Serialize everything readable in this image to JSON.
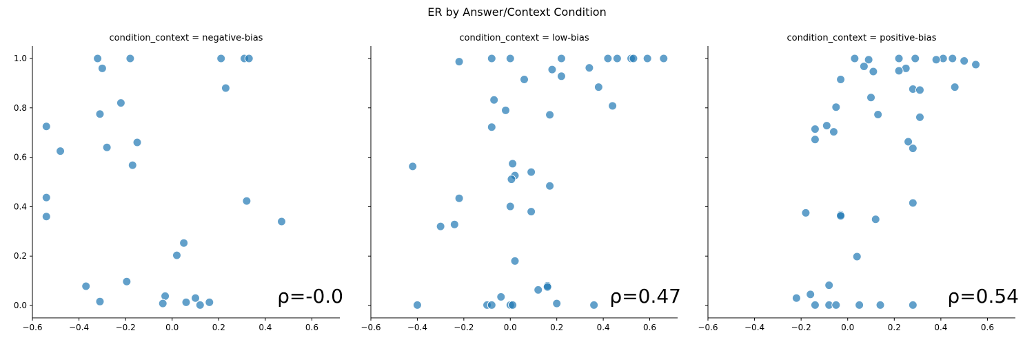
{
  "title": "ER by Answer/Context Condition",
  "chart_data": [
    {
      "type": "scatter",
      "title": "condition_context = negative-bias",
      "xlim": [
        -0.6,
        0.72
      ],
      "ylim": [
        -0.05,
        1.05
      ],
      "xticks": [
        -0.6,
        -0.4,
        -0.2,
        0.0,
        0.2,
        0.4,
        0.6
      ],
      "xtick_labels": [
        "−0.6",
        "−0.4",
        "−0.2",
        "0.0",
        "0.2",
        "0.4",
        "0.6"
      ],
      "yticks": [
        0.0,
        0.2,
        0.4,
        0.6,
        0.8,
        1.0
      ],
      "ytick_labels": [
        "0.0",
        "0.2",
        "0.4",
        "0.6",
        "0.8",
        "1.0"
      ],
      "annotation": "ρ=-0.0",
      "points": [
        [
          -0.32,
          1.0
        ],
        [
          -0.18,
          1.0
        ],
        [
          0.21,
          1.0
        ],
        [
          0.31,
          1.0
        ],
        [
          0.33,
          1.0
        ],
        [
          -0.3,
          0.96
        ],
        [
          0.23,
          0.88
        ],
        [
          -0.22,
          0.82
        ],
        [
          -0.31,
          0.775
        ],
        [
          -0.54,
          0.725
        ],
        [
          -0.15,
          0.66
        ],
        [
          -0.28,
          0.64
        ],
        [
          -0.48,
          0.625
        ],
        [
          -0.17,
          0.568
        ],
        [
          -0.54,
          0.437
        ],
        [
          0.32,
          0.423
        ],
        [
          -0.54,
          0.36
        ],
        [
          0.47,
          0.34
        ],
        [
          0.05,
          0.253
        ],
        [
          0.02,
          0.203
        ],
        [
          -0.195,
          0.097
        ],
        [
          -0.37,
          0.078
        ],
        [
          -0.03,
          0.038
        ],
        [
          0.1,
          0.03
        ],
        [
          -0.31,
          0.016
        ],
        [
          0.06,
          0.013
        ],
        [
          0.16,
          0.013
        ],
        [
          -0.04,
          0.008
        ],
        [
          0.12,
          0.002
        ]
      ]
    },
    {
      "type": "scatter",
      "title": "condition_context = low-bias",
      "xlim": [
        -0.6,
        0.72
      ],
      "ylim": [
        -0.05,
        1.05
      ],
      "xticks": [
        -0.6,
        -0.4,
        -0.2,
        0.0,
        0.2,
        0.4,
        0.6
      ],
      "xtick_labels": [
        "−0.6",
        "−0.4",
        "−0.2",
        "0.0",
        "0.2",
        "0.4",
        "0.6"
      ],
      "yticks": [
        0.0,
        0.2,
        0.4,
        0.6,
        0.8,
        1.0
      ],
      "ytick_labels": [
        "0.0",
        "0.2",
        "0.4",
        "0.6",
        "0.8",
        "1.0"
      ],
      "annotation": "ρ=0.47",
      "points": [
        [
          -0.08,
          1.0
        ],
        [
          0.0,
          1.0
        ],
        [
          0.22,
          1.0
        ],
        [
          0.42,
          1.0
        ],
        [
          0.46,
          1.0
        ],
        [
          0.52,
          1.0
        ],
        [
          0.53,
          1.0
        ],
        [
          0.59,
          1.0
        ],
        [
          0.66,
          1.0
        ],
        [
          -0.22,
          0.987
        ],
        [
          0.34,
          0.962
        ],
        [
          0.18,
          0.955
        ],
        [
          0.22,
          0.928
        ],
        [
          0.06,
          0.915
        ],
        [
          0.38,
          0.884
        ],
        [
          -0.07,
          0.832
        ],
        [
          0.44,
          0.808
        ],
        [
          -0.02,
          0.79
        ],
        [
          0.17,
          0.772
        ],
        [
          -0.08,
          0.722
        ],
        [
          0.01,
          0.574
        ],
        [
          -0.42,
          0.563
        ],
        [
          0.09,
          0.54
        ],
        [
          0.02,
          0.526
        ],
        [
          0.005,
          0.511
        ],
        [
          0.17,
          0.484
        ],
        [
          -0.22,
          0.434
        ],
        [
          0.0,
          0.401
        ],
        [
          0.09,
          0.38
        ],
        [
          -0.24,
          0.328
        ],
        [
          -0.3,
          0.32
        ],
        [
          0.02,
          0.18
        ],
        [
          0.16,
          0.08
        ],
        [
          0.16,
          0.075
        ],
        [
          0.12,
          0.063
        ],
        [
          -0.04,
          0.035
        ],
        [
          0.2,
          0.008
        ],
        [
          -0.4,
          0.002
        ],
        [
          -0.1,
          0.002
        ],
        [
          -0.08,
          0.002
        ],
        [
          0.0,
          0.002
        ],
        [
          0.01,
          0.002
        ],
        [
          0.36,
          0.002
        ]
      ]
    },
    {
      "type": "scatter",
      "title": "condition_context = positive-bias",
      "xlim": [
        -0.6,
        0.72
      ],
      "ylim": [
        -0.05,
        1.05
      ],
      "xticks": [
        -0.6,
        -0.4,
        -0.2,
        0.0,
        0.2,
        0.4,
        0.6
      ],
      "xtick_labels": [
        "−0.6",
        "−0.4",
        "−0.2",
        "0.0",
        "0.2",
        "0.4",
        "0.6"
      ],
      "yticks": [
        0.0,
        0.2,
        0.4,
        0.6,
        0.8,
        1.0
      ],
      "ytick_labels": [
        "0.0",
        "0.2",
        "0.4",
        "0.6",
        "0.8",
        "1.0"
      ],
      "annotation": "ρ=0.54",
      "points": [
        [
          0.03,
          1.0
        ],
        [
          0.22,
          1.0
        ],
        [
          0.29,
          1.0
        ],
        [
          0.41,
          1.0
        ],
        [
          0.45,
          1.0
        ],
        [
          0.09,
          0.995
        ],
        [
          0.38,
          0.995
        ],
        [
          0.5,
          0.99
        ],
        [
          0.55,
          0.975
        ],
        [
          0.07,
          0.968
        ],
        [
          0.25,
          0.96
        ],
        [
          0.11,
          0.947
        ],
        [
          0.22,
          0.95
        ],
        [
          -0.03,
          0.915
        ],
        [
          0.46,
          0.884
        ],
        [
          0.28,
          0.876
        ],
        [
          0.31,
          0.872
        ],
        [
          0.1,
          0.842
        ],
        [
          -0.05,
          0.803
        ],
        [
          0.13,
          0.773
        ],
        [
          0.31,
          0.762
        ],
        [
          -0.09,
          0.728
        ],
        [
          -0.14,
          0.714
        ],
        [
          -0.06,
          0.703
        ],
        [
          -0.14,
          0.672
        ],
        [
          0.26,
          0.663
        ],
        [
          0.28,
          0.636
        ],
        [
          0.28,
          0.415
        ],
        [
          -0.18,
          0.375
        ],
        [
          -0.03,
          0.367
        ],
        [
          -0.03,
          0.363
        ],
        [
          0.12,
          0.349
        ],
        [
          0.04,
          0.198
        ],
        [
          -0.08,
          0.082
        ],
        [
          -0.16,
          0.045
        ],
        [
          -0.22,
          0.03
        ],
        [
          -0.14,
          0.002
        ],
        [
          -0.08,
          0.002
        ],
        [
          -0.05,
          0.002
        ],
        [
          0.05,
          0.002
        ],
        [
          0.14,
          0.002
        ],
        [
          0.28,
          0.002
        ]
      ]
    }
  ],
  "colors": {
    "point_fill": "#1f77b4",
    "point_stroke": "#ffffff",
    "axis": "#000000",
    "text": "#000000"
  }
}
